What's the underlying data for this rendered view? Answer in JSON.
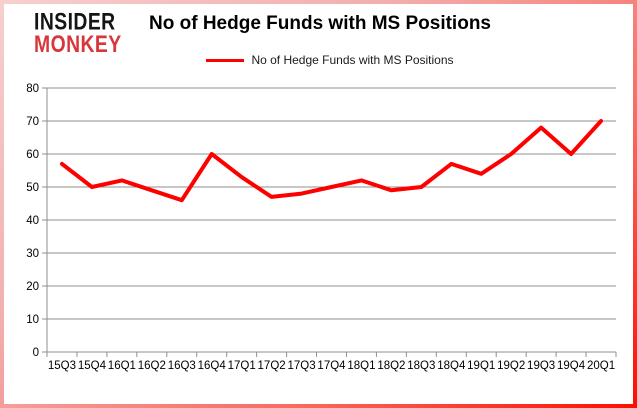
{
  "branding": {
    "logo_line1": "INSIDER",
    "logo_line2": "MONKEY",
    "logo_color_primary": "#151515",
    "logo_color_accent": "#d7373c"
  },
  "header": {
    "title": "No of Hedge Funds with MS Positions"
  },
  "legend": {
    "label": "No of Hedge Funds with MS Positions",
    "line_color": "#fe0000"
  },
  "chart_data": {
    "type": "line",
    "title": "No of Hedge Funds with MS Positions",
    "categories": [
      "15Q3",
      "15Q4",
      "16Q1",
      "16Q2",
      "16Q3",
      "16Q4",
      "17Q1",
      "17Q2",
      "17Q3",
      "17Q4",
      "18Q1",
      "18Q2",
      "18Q3",
      "18Q4",
      "19Q1",
      "19Q2",
      "19Q3",
      "19Q4",
      "20Q1"
    ],
    "series": [
      {
        "name": "No of Hedge Funds with MS Positions",
        "color": "#fe0000",
        "values": [
          57,
          50,
          52,
          49,
          46,
          60,
          53,
          47,
          48,
          50,
          52,
          49,
          50,
          57,
          54,
          60,
          68,
          60,
          70
        ]
      }
    ],
    "xlabel": "",
    "ylabel": "",
    "ylim": [
      0,
      80
    ],
    "ytick_interval": 10,
    "grid": true,
    "gridline_color": "#8f8f8f",
    "axis_text_color": "#000000",
    "legend_position": "top"
  }
}
